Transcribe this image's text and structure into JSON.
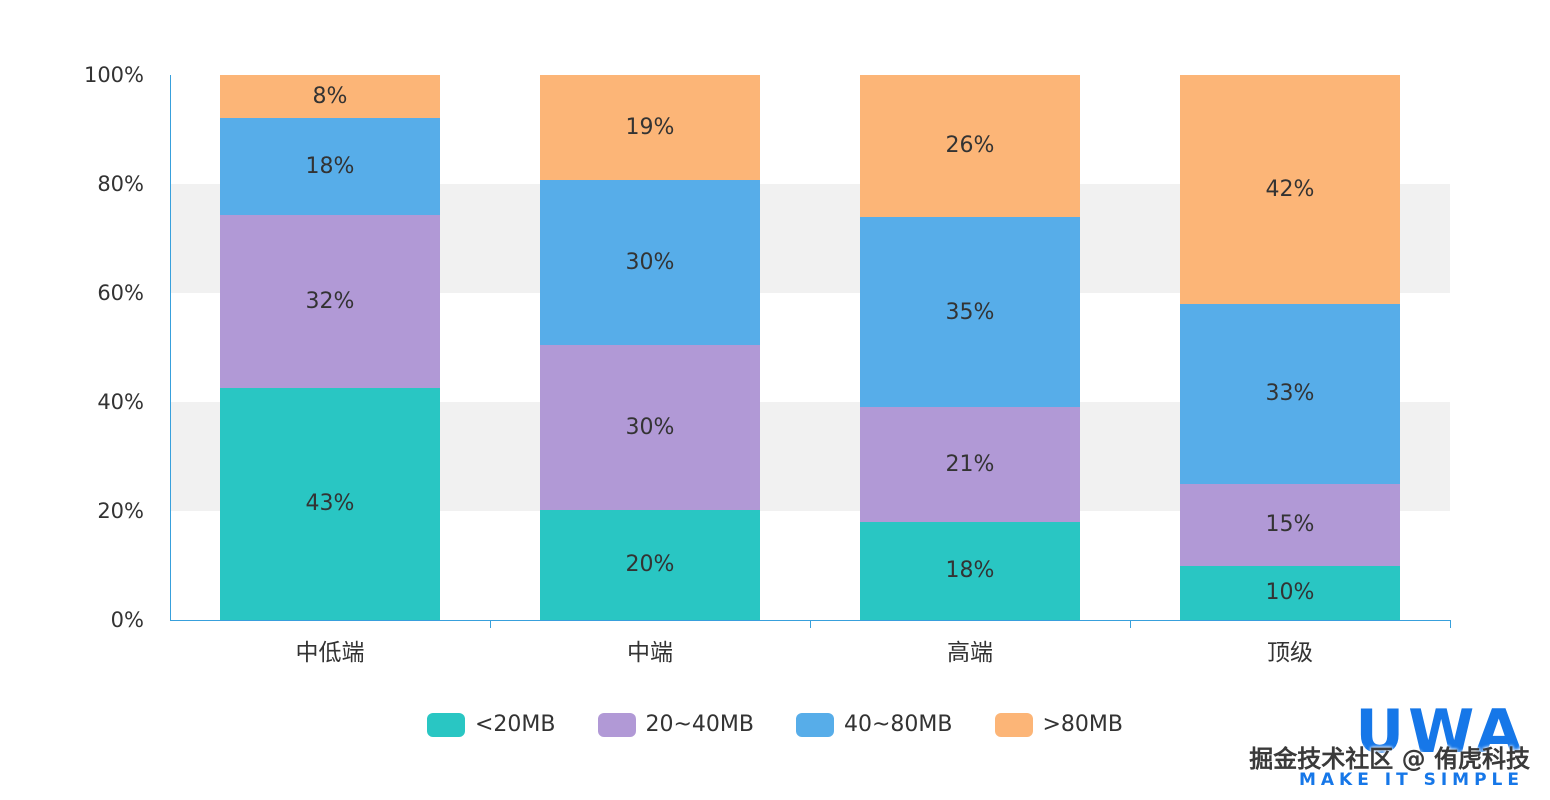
{
  "chart_data": {
    "type": "bar",
    "stacked": true,
    "percent": true,
    "title": "",
    "categories": [
      "中低端",
      "中端",
      "高端",
      "顶级"
    ],
    "series": [
      {
        "name": "<20MB",
        "color": "#29c6c3",
        "values": [
          43,
          20,
          18,
          10
        ]
      },
      {
        "name": "20~40MB",
        "color": "#b199d6",
        "values": [
          32,
          30,
          21,
          15
        ]
      },
      {
        "name": "40~80MB",
        "color": "#57ade9",
        "values": [
          18,
          30,
          35,
          33
        ]
      },
      {
        "name": ">80MB",
        "color": "#fcb577",
        "values": [
          8,
          19,
          26,
          42
        ]
      }
    ],
    "value_suffix": "%",
    "y_ticks": [
      "0%",
      "20%",
      "40%",
      "60%",
      "80%",
      "100%"
    ],
    "ylim": [
      0,
      100
    ],
    "grid": "striped",
    "legend_position": "bottom",
    "axis_color": "#38a0dc"
  },
  "branding": {
    "logo_text": "UWA",
    "logo_tagline": "MAKE IT SIMPLE",
    "watermark": "掘金技术社区 @ 侑虎科技"
  }
}
